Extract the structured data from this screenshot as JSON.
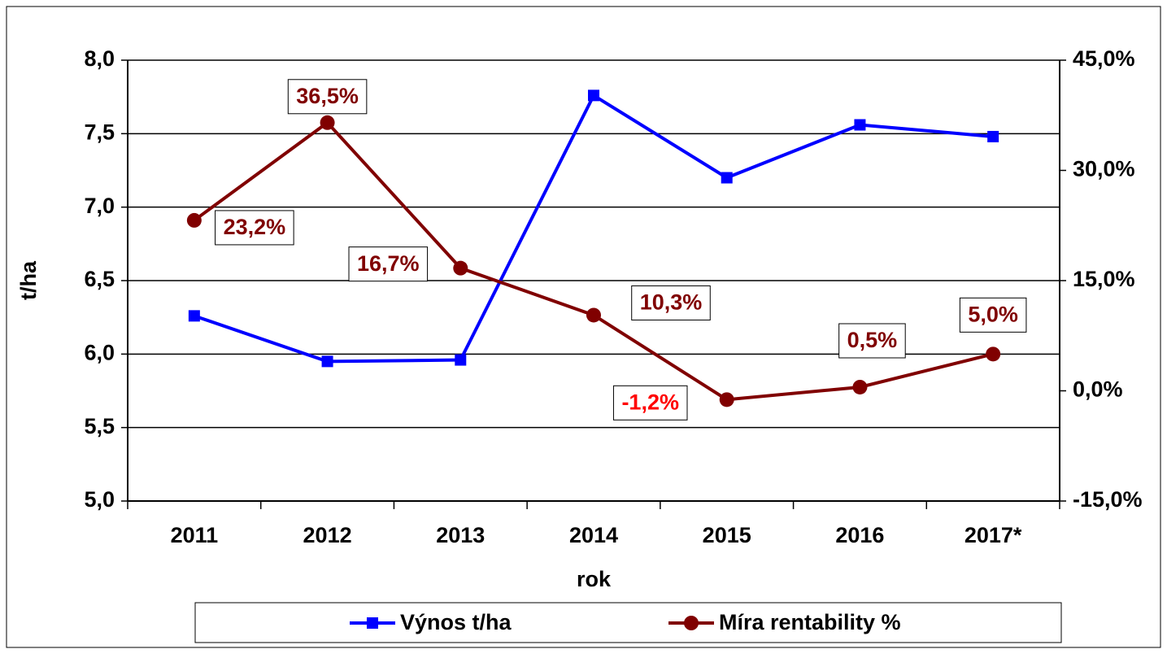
{
  "chart_data": {
    "type": "line",
    "x_label": "rok",
    "y_label": "t/ha",
    "categories": [
      "2011",
      "2012",
      "2013",
      "2014",
      "2015",
      "2016",
      "2017*"
    ],
    "series": [
      {
        "name": "Výnos t/ha",
        "color": "#0000ff",
        "marker": "square",
        "values": [
          6.26,
          5.95,
          5.96,
          7.76,
          7.2,
          7.56,
          7.48
        ]
      },
      {
        "name": "Míra rentability %",
        "color": "#800000",
        "marker": "circle",
        "axis": "y2",
        "values": [
          23.2,
          36.5,
          16.7,
          10.3,
          -1.2,
          0.5,
          5.0
        ],
        "value_labels": [
          "23,2%",
          "36,5%",
          "16,7%",
          "10,3%",
          "-1,2%",
          "0,5%",
          "5,0%"
        ],
        "negative_label_color": "#ff0000"
      }
    ],
    "ylim": [
      5,
      8
    ],
    "yticks": [
      {
        "value": 5,
        "label": "5,0"
      },
      {
        "value": 5.5,
        "label": "5,5"
      },
      {
        "value": 6,
        "label": "6,0"
      },
      {
        "value": 6.5,
        "label": "6,5"
      },
      {
        "value": 7,
        "label": "7,0"
      },
      {
        "value": 7.5,
        "label": "7,5"
      },
      {
        "value": 8,
        "label": "8,0"
      }
    ],
    "y2lim": [
      -15,
      45
    ],
    "y2ticks": [
      {
        "value": -15,
        "label": "-15,0%"
      },
      {
        "value": 0,
        "label": "0,0%"
      },
      {
        "value": 15,
        "label": "15,0%"
      },
      {
        "value": 30,
        "label": "30,0%"
      },
      {
        "value": 45,
        "label": "45,0%"
      }
    ],
    "grid": true,
    "legend": "bottom"
  }
}
